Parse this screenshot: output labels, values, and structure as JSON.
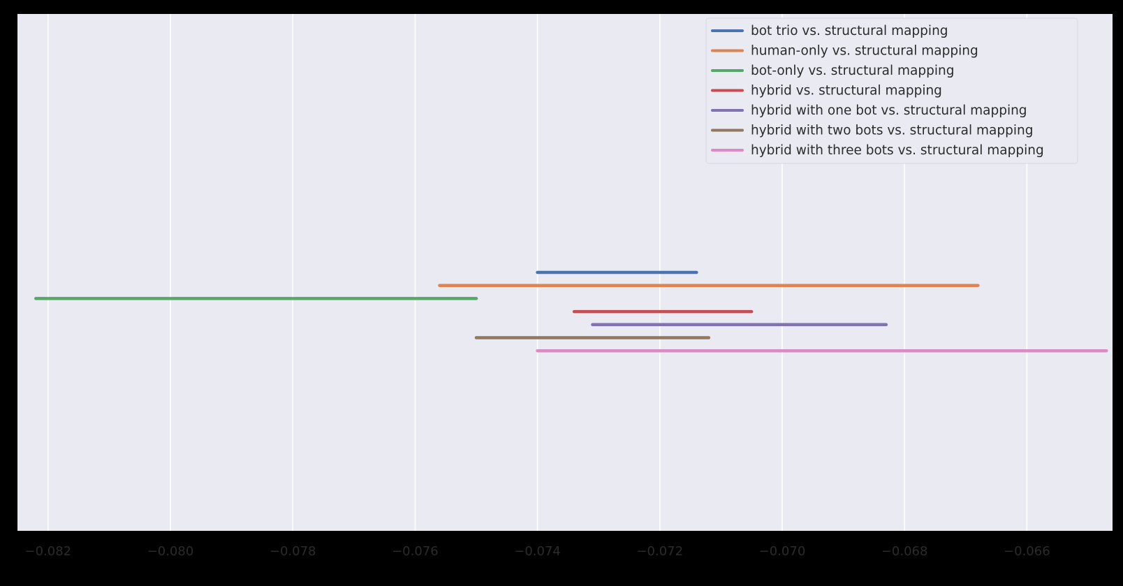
{
  "chart_data": {
    "type": "interval",
    "title": "",
    "xlabel": "",
    "ylabel": "",
    "xlim": [
      -0.0825,
      -0.0646
    ],
    "xticks": [
      -0.082,
      -0.08,
      -0.078,
      -0.076,
      -0.074,
      -0.072,
      -0.07,
      -0.068,
      -0.066
    ],
    "xtick_labels": [
      "−0.082",
      "−0.080",
      "−0.078",
      "−0.076",
      "−0.074",
      "−0.072",
      "−0.070",
      "−0.068",
      "−0.066"
    ],
    "grid": true,
    "legend_position": "top-right",
    "background_color": "#eaeaf2",
    "series": [
      {
        "name": "bot trio vs. structural mapping",
        "low": -0.074,
        "high": -0.0714,
        "color": "#4c72b0"
      },
      {
        "name": "human-only vs. structural mapping",
        "low": -0.0756,
        "high": -0.0668,
        "color": "#dd8452"
      },
      {
        "name": "bot-only vs. structural mapping",
        "low": -0.0822,
        "high": -0.075,
        "color": "#55a868"
      },
      {
        "name": "hybrid vs. structural mapping",
        "low": -0.0734,
        "high": -0.0705,
        "color": "#c44e52"
      },
      {
        "name": "hybrid with one bot vs. structural mapping",
        "low": -0.0731,
        "high": -0.0683,
        "color": "#8172b3"
      },
      {
        "name": "hybrid with two bots vs. structural mapping",
        "low": -0.075,
        "high": -0.0712,
        "color": "#937860"
      },
      {
        "name": "hybrid with three bots vs. structural mapping",
        "low": -0.074,
        "high": -0.0647,
        "color": "#da8bc3"
      }
    ]
  }
}
